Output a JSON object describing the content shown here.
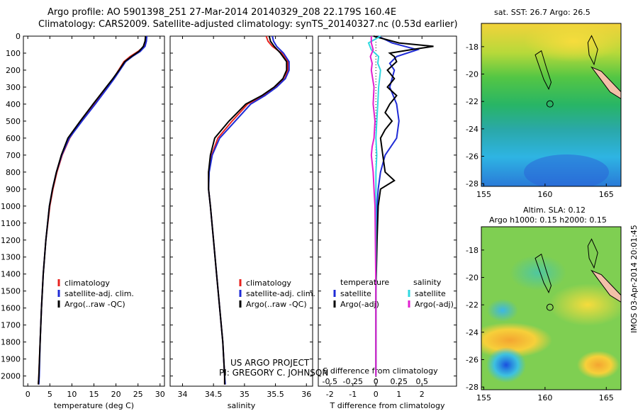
{
  "header": {
    "line1": "Argo profile: AO 5901398_251 27-Mar-2014 20140329_208 22.179S 160.4E",
    "line2": "Climatology: CARS2009. Satellite-adjusted climatology: synTS_20140327.nc (0.53d earlier)"
  },
  "colors": {
    "climatology": "#e8231f",
    "satellite": "#1f2bd6",
    "argo": "#000000",
    "sal_satellite": "#2fd8e0",
    "sal_argo": "#e21fd0",
    "land": "#f3c0a8"
  },
  "credits": {
    "line1": "US ARGO PROJECT",
    "line2": "PI: GREGORY C. JOHNSON"
  },
  "timestamp": "IMOS 03-Apr-2014 20:01:45",
  "chart_data": [
    {
      "type": "line",
      "id": "temperature",
      "xlabel": "temperature (deg C)",
      "ylabel": "",
      "xlim": [
        -1,
        31
      ],
      "ylim": [
        2060,
        0
      ],
      "xticks": [
        0,
        5,
        10,
        15,
        20,
        25,
        30
      ],
      "yticks": [
        0,
        100,
        200,
        300,
        400,
        500,
        600,
        700,
        800,
        900,
        1000,
        1100,
        1200,
        1300,
        1400,
        1500,
        1600,
        1700,
        1800,
        1900,
        2000
      ],
      "legend": [
        "climatology",
        "satellite-adj. clim.",
        "Argo(..raw -QC)"
      ],
      "series": [
        {
          "name": "climatology",
          "depth": [
            0,
            30,
            60,
            90,
            120,
            150,
            200,
            250,
            300,
            400,
            500,
            600,
            700,
            800,
            900,
            1000,
            1200,
            1400,
            1600,
            1800,
            2000,
            2050
          ],
          "values": [
            26.9,
            26.8,
            26.4,
            25,
            23.2,
            21.8,
            20.6,
            19.4,
            18,
            15,
            12,
            9.5,
            7.8,
            6.6,
            5.7,
            5,
            4.1,
            3.5,
            3.1,
            2.8,
            2.5,
            2.4
          ]
        },
        {
          "name": "satellite-adj. clim.",
          "depth": [
            0,
            30,
            60,
            90,
            120,
            150,
            200,
            250,
            300,
            400,
            500,
            600,
            700,
            800,
            900,
            1000,
            1200,
            1400,
            1600,
            1800,
            2000,
            2050
          ],
          "values": [
            27,
            26.9,
            26.6,
            25.5,
            23.7,
            22.2,
            20.9,
            19.6,
            18.2,
            15.3,
            12.3,
            9.4,
            7.7,
            6.5,
            5.6,
            4.9,
            4.1,
            3.5,
            3.1,
            2.8,
            2.6,
            2.5
          ]
        },
        {
          "name": "Argo(..raw -QC)",
          "depth": [
            0,
            30,
            60,
            90,
            120,
            150,
            200,
            250,
            300,
            400,
            500,
            600,
            700,
            800,
            900,
            1000,
            1200,
            1400,
            1600,
            1800,
            2000,
            2050
          ],
          "values": [
            26.7,
            26.6,
            26.2,
            25.2,
            23.5,
            22,
            20.7,
            19.3,
            17.8,
            14.8,
            11.9,
            9.1,
            7.6,
            6.5,
            5.6,
            4.9,
            4.1,
            3.5,
            3.1,
            2.8,
            2.5,
            2.4
          ]
        }
      ]
    },
    {
      "type": "line",
      "id": "salinity",
      "xlabel": "salinity",
      "xlim": [
        33.8,
        36.1
      ],
      "ylim": [
        2060,
        0
      ],
      "xticks": [
        34,
        34.5,
        35,
        35.5,
        36
      ],
      "legend": [
        "climatology",
        "satellite-adj. clim.",
        "Argo(..raw -QC)"
      ],
      "series": [
        {
          "name": "climatology",
          "depth": [
            0,
            30,
            60,
            100,
            150,
            200,
            250,
            300,
            350,
            400,
            500,
            600,
            700,
            800,
            900,
            1000,
            1200,
            1400,
            1600,
            1800,
            2000,
            2050
          ],
          "values": [
            35.35,
            35.38,
            35.45,
            35.6,
            35.7,
            35.7,
            35.65,
            35.5,
            35.3,
            35.05,
            34.8,
            34.57,
            34.47,
            34.42,
            34.42,
            34.45,
            34.5,
            34.55,
            34.6,
            34.65,
            34.68,
            34.68
          ]
        },
        {
          "name": "satellite-adj. clim.",
          "depth": [
            0,
            30,
            60,
            100,
            150,
            200,
            250,
            300,
            350,
            400,
            500,
            600,
            700,
            800,
            900,
            1000,
            1200,
            1400,
            1600,
            1800,
            2000,
            2050
          ],
          "values": [
            35.45,
            35.47,
            35.52,
            35.63,
            35.72,
            35.72,
            35.66,
            35.52,
            35.33,
            35.1,
            34.85,
            34.6,
            34.48,
            34.43,
            34.42,
            34.45,
            34.5,
            34.55,
            34.6,
            34.65,
            34.68,
            34.69
          ]
        },
        {
          "name": "Argo(..raw -QC)",
          "depth": [
            0,
            30,
            60,
            100,
            150,
            200,
            250,
            300,
            350,
            400,
            500,
            600,
            700,
            800,
            900,
            1000,
            1200,
            1400,
            1600,
            1800,
            2000,
            2050
          ],
          "values": [
            35.4,
            35.42,
            35.48,
            35.58,
            35.68,
            35.68,
            35.62,
            35.48,
            35.28,
            35.02,
            34.75,
            34.52,
            34.45,
            34.42,
            34.42,
            34.45,
            34.5,
            34.55,
            34.6,
            34.65,
            34.68,
            34.68
          ]
        }
      ]
    },
    {
      "type": "line",
      "id": "difference",
      "xlabel": "T difference from climatology",
      "xlabel_top": "S difference from climatology",
      "xlim": [
        -2.5,
        3.5
      ],
      "ylim": [
        2060,
        0
      ],
      "xticks": [
        -2,
        -1,
        0,
        1,
        2
      ],
      "xticks_s": [
        -0.5,
        -0.25,
        0,
        0.25,
        0.5
      ],
      "legend_title_t": "temperature",
      "legend_title_s": "salinity",
      "legend": [
        "satellite",
        "Argo(-adj)",
        "satellite",
        "Argo(-adj)"
      ],
      "series": [
        {
          "name": "temperature satellite",
          "depth": [
            0,
            40,
            80,
            120,
            160,
            200,
            300,
            400,
            500,
            600,
            700,
            800,
            900,
            1000,
            1200,
            1500,
            2000
          ],
          "values": [
            0.1,
            0.7,
            1.8,
            0.9,
            0.6,
            0.8,
            0.6,
            0.9,
            1.0,
            0.9,
            0.4,
            0.2,
            0.1,
            0.05,
            0.02,
            0,
            0
          ]
        },
        {
          "name": "temperature Argo(-adj)",
          "depth": [
            0,
            40,
            60,
            80,
            100,
            120,
            150,
            200,
            250,
            300,
            350,
            400,
            450,
            500,
            550,
            600,
            700,
            800,
            850,
            900,
            1000,
            1200,
            1500,
            2000
          ],
          "values": [
            -0.1,
            1.0,
            2.5,
            1.5,
            0.6,
            0.8,
            0.9,
            0.5,
            0.8,
            0.5,
            0.9,
            0.6,
            0.4,
            0.7,
            0.4,
            0.2,
            0.3,
            0.4,
            0.8,
            0.2,
            0.1,
            0.05,
            0,
            0
          ]
        },
        {
          "name": "salinity satellite",
          "depth": [
            0,
            40,
            80,
            120,
            160,
            200,
            300,
            400,
            500,
            600,
            700,
            800,
            1000,
            1500,
            2000
          ],
          "values": [
            0.05,
            -0.08,
            -0.05,
            0.03,
            0.02,
            0.05,
            0.03,
            0.02,
            0.01,
            0.0,
            0.01,
            0.0,
            0.0,
            0,
            0
          ]
        },
        {
          "name": "salinity Argo(-adj)",
          "depth": [
            0,
            40,
            80,
            120,
            160,
            200,
            300,
            400,
            500,
            600,
            650,
            700,
            800,
            900,
            1000,
            1500,
            2000
          ],
          "values": [
            -0.05,
            -0.05,
            -0.03,
            -0.06,
            -0.04,
            -0.05,
            -0.02,
            -0.03,
            -0.01,
            -0.02,
            -0.04,
            -0.05,
            -0.03,
            -0.02,
            -0.01,
            0,
            0
          ]
        }
      ]
    },
    {
      "type": "heatmap",
      "id": "sst_map",
      "title": "sat. SST: 26.7 Argo: 26.5",
      "xticks": [
        155,
        160,
        165
      ],
      "yticks": [
        -18,
        -20,
        -22,
        -24,
        -26,
        -28
      ],
      "xlim": [
        154.8,
        166.2
      ],
      "ylim": [
        -28.2,
        -16.3
      ],
      "marker": {
        "lon": 160.4,
        "lat": -22.18
      }
    },
    {
      "type": "heatmap",
      "id": "sla_map",
      "title_line1": "Altim. SLA: 0.12",
      "title_line2": "Argo h1000: 0.15 h2000: 0.15",
      "xticks": [
        155,
        160,
        165
      ],
      "yticks": [
        -18,
        -20,
        -22,
        -24,
        -26,
        -28
      ],
      "xlim": [
        154.8,
        166.2
      ],
      "ylim": [
        -28.2,
        -16.3
      ],
      "marker": {
        "lon": 160.4,
        "lat": -22.18
      }
    }
  ]
}
